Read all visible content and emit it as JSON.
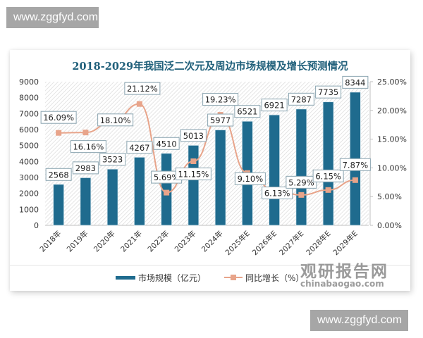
{
  "watermark": {
    "top": "www.zggfyd.com",
    "bottom": "www.zggfyd.com"
  },
  "logo": {
    "cn": "观研报告网",
    "en": "chinabaogao.com"
  },
  "legend": {
    "bar_label": "市场规模（亿元）",
    "line_label": "同比增长（%）"
  },
  "colors": {
    "bar": "#1f6b8e",
    "line": "#e8a48a",
    "title": "#1f5f7a"
  },
  "chart_data": {
    "type": "bar+line",
    "title": "2018-2029年我国泛二次元及周边市场规模及增长预测情况",
    "categories": [
      "2018年",
      "2019年",
      "2020年",
      "2021年",
      "2022年",
      "2023年",
      "2024年",
      "2025年E",
      "2026年E",
      "2027年E",
      "2028年E",
      "2029年E"
    ],
    "series": [
      {
        "name": "市场规模（亿元）",
        "type": "bar",
        "axis": "left",
        "values": [
          2568,
          2983,
          3523,
          4267,
          4510,
          5013,
          5977,
          6521,
          6921,
          7287,
          7735,
          8344
        ],
        "labels": [
          "2568",
          "2983",
          "3523",
          "4267",
          "4510",
          "5013",
          "5977",
          "6521",
          "6921",
          "7287",
          "7735",
          "8344"
        ]
      },
      {
        "name": "同比增长（%）",
        "type": "line",
        "axis": "right",
        "values": [
          16.09,
          16.16,
          18.1,
          21.12,
          5.69,
          11.15,
          19.23,
          9.1,
          6.13,
          5.29,
          6.15,
          7.87
        ],
        "labels": [
          "16.09%",
          "16.16%",
          "18.10%",
          "21.12%",
          "5.69%",
          "11.15%",
          "19.23%",
          "9.10%",
          "6.13%",
          "5.29%",
          "6.15%",
          "7.87%"
        ]
      }
    ],
    "left_axis": {
      "min": 0,
      "max": 9000,
      "ticks": [
        "0",
        "1000",
        "2000",
        "3000",
        "4000",
        "5000",
        "6000",
        "7000",
        "8000",
        "9000"
      ]
    },
    "right_axis": {
      "min": 0,
      "max": 25,
      "ticks": [
        "0.00%",
        "5.00%",
        "10.00%",
        "15.00%",
        "20.00%",
        "25.00%"
      ]
    },
    "xlabel": "",
    "ylabel": "",
    "legend_position": "bottom",
    "grid": false
  }
}
